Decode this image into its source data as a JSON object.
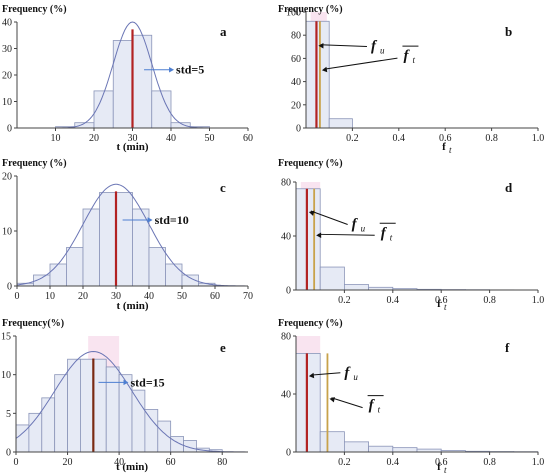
{
  "chart_data": [
    {
      "panel": "a",
      "type": "bar",
      "side": "left",
      "ylabel": "Frequency (%)",
      "xlabel": "t (min)",
      "xlim": [
        0,
        60
      ],
      "xticks": [
        10,
        20,
        30,
        40,
        50,
        60
      ],
      "ylim": [
        0,
        40
      ],
      "yticks": [
        0,
        10,
        20,
        30,
        40
      ],
      "bins": [
        {
          "x0": 10,
          "x1": 15,
          "value": 0.5
        },
        {
          "x0": 15,
          "x1": 20,
          "value": 2
        },
        {
          "x0": 20,
          "x1": 25,
          "value": 14
        },
        {
          "x0": 25,
          "x1": 30,
          "value": 33
        },
        {
          "x0": 30,
          "x1": 35,
          "value": 35
        },
        {
          "x0": 35,
          "x1": 40,
          "value": 14
        },
        {
          "x0": 40,
          "x1": 45,
          "value": 2
        },
        {
          "x0": 45,
          "x1": 50,
          "value": 0.5
        }
      ],
      "normal_curve": {
        "mean": 30,
        "std": 5,
        "peak": 40
      },
      "mean_line": {
        "x": 30,
        "color": "#b22222"
      },
      "annotation": "std=5",
      "annotation_anchor": {
        "x": 33,
        "y": 22
      }
    },
    {
      "panel": "b",
      "type": "bar",
      "side": "right",
      "ylabel": "Frequency (%)",
      "xlabel": "f",
      "xlabel_sub": "t",
      "xlim": [
        0,
        1
      ],
      "xticks": [
        0.2,
        0.4,
        0.6,
        0.8,
        1.0
      ],
      "xtick_labels": [
        "0.2",
        "0.4",
        "0.6",
        "0.8",
        "1.0"
      ],
      "ylim": [
        0,
        100
      ],
      "yticks": [
        0,
        20,
        40,
        60,
        80,
        100
      ],
      "bins": [
        {
          "x0": 0,
          "x1": 0.1,
          "value": 92
        },
        {
          "x0": 0.1,
          "x1": 0.2,
          "value": 8
        }
      ],
      "lines": [
        {
          "x": 0.045,
          "color": "#b22222"
        },
        {
          "x": 0.06,
          "color": "#c8a24a"
        }
      ],
      "band": {
        "x0": 0.02,
        "x1": 0.09,
        "color": "#f6d8ea"
      },
      "fu_label": "f",
      "fu_sub": "u",
      "ft_label": "f",
      "ft_sub": "t",
      "fu_pos": {
        "x": 0.28,
        "y": 72
      },
      "ft_pos": {
        "x": 0.42,
        "y": 62
      }
    },
    {
      "panel": "c",
      "type": "bar",
      "side": "left",
      "ylabel": "Frequency (%)",
      "xlabel": "t (min)",
      "xlim": [
        0,
        70
      ],
      "xticks": [
        0,
        10,
        20,
        30,
        40,
        50,
        60,
        70
      ],
      "ylim": [
        0,
        20
      ],
      "yticks": [
        0,
        10,
        20
      ],
      "bins": [
        {
          "x0": 0,
          "x1": 5,
          "value": 0.5
        },
        {
          "x0": 5,
          "x1": 10,
          "value": 2
        },
        {
          "x0": 10,
          "x1": 15,
          "value": 4
        },
        {
          "x0": 15,
          "x1": 20,
          "value": 7
        },
        {
          "x0": 20,
          "x1": 25,
          "value": 14
        },
        {
          "x0": 25,
          "x1": 30,
          "value": 17
        },
        {
          "x0": 30,
          "x1": 35,
          "value": 17
        },
        {
          "x0": 35,
          "x1": 40,
          "value": 14
        },
        {
          "x0": 40,
          "x1": 45,
          "value": 7
        },
        {
          "x0": 45,
          "x1": 50,
          "value": 4
        },
        {
          "x0": 50,
          "x1": 55,
          "value": 2
        },
        {
          "x0": 55,
          "x1": 60,
          "value": 0.5
        }
      ],
      "normal_curve": {
        "mean": 30,
        "std": 10,
        "peak": 18.5
      },
      "mean_line": {
        "x": 30,
        "color": "#b22222"
      },
      "annotation": "std=10",
      "annotation_anchor": {
        "x": 32,
        "y": 12
      }
    },
    {
      "panel": "d",
      "type": "bar",
      "side": "right",
      "ylabel": "Frequency (%)",
      "xlabel": "f",
      "xlabel_sub": "t",
      "xlim": [
        0,
        1
      ],
      "xticks": [
        0.2,
        0.4,
        0.6,
        0.8,
        1.0
      ],
      "xtick_labels": [
        "0.2",
        "0.4",
        "0.6",
        "0.8",
        "1.0"
      ],
      "ylim": [
        0,
        80
      ],
      "yticks": [
        0,
        40,
        80
      ],
      "bins": [
        {
          "x0": 0,
          "x1": 0.1,
          "value": 75
        },
        {
          "x0": 0.1,
          "x1": 0.2,
          "value": 17
        },
        {
          "x0": 0.2,
          "x1": 0.3,
          "value": 4
        },
        {
          "x0": 0.3,
          "x1": 0.4,
          "value": 2
        },
        {
          "x0": 0.4,
          "x1": 0.5,
          "value": 1
        },
        {
          "x0": 0.5,
          "x1": 0.6,
          "value": 0.5
        },
        {
          "x0": 0.6,
          "x1": 0.7,
          "value": 0.3
        },
        {
          "x0": 0.7,
          "x1": 0.8,
          "value": 0.2
        },
        {
          "x0": 0.8,
          "x1": 0.9,
          "value": 0.1
        }
      ],
      "lines": [
        {
          "x": 0.045,
          "color": "#b22222"
        },
        {
          "x": 0.075,
          "color": "#c8a24a"
        }
      ],
      "band": {
        "x0": 0.02,
        "x1": 0.1,
        "color": "#f6d8ea"
      },
      "fu_label": "f",
      "fu_sub": "u",
      "ft_label": "f",
      "ft_sub": "t",
      "fu_pos": {
        "x": 0.23,
        "y": 50
      },
      "ft_pos": {
        "x": 0.35,
        "y": 42
      }
    },
    {
      "panel": "e",
      "type": "bar",
      "side": "left",
      "ylabel": "Frequency(%)",
      "xlabel": "t (min)",
      "xlim": [
        0,
        90
      ],
      "xticks": [
        0,
        20,
        40,
        60,
        80
      ],
      "ylim": [
        0,
        15
      ],
      "yticks": [
        0,
        5,
        10,
        15
      ],
      "bins": [
        {
          "x0": 0,
          "x1": 5,
          "value": 3.5
        },
        {
          "x0": 5,
          "x1": 10,
          "value": 5
        },
        {
          "x0": 10,
          "x1": 15,
          "value": 7
        },
        {
          "x0": 15,
          "x1": 20,
          "value": 10
        },
        {
          "x0": 20,
          "x1": 25,
          "value": 12
        },
        {
          "x0": 25,
          "x1": 30,
          "value": 12
        },
        {
          "x0": 30,
          "x1": 35,
          "value": 12
        },
        {
          "x0": 35,
          "x1": 40,
          "value": 11
        },
        {
          "x0": 40,
          "x1": 45,
          "value": 10
        },
        {
          "x0": 45,
          "x1": 50,
          "value": 8
        },
        {
          "x0": 50,
          "x1": 55,
          "value": 5.5
        },
        {
          "x0": 55,
          "x1": 60,
          "value": 4
        },
        {
          "x0": 60,
          "x1": 65,
          "value": 2
        },
        {
          "x0": 65,
          "x1": 70,
          "value": 1.5
        },
        {
          "x0": 70,
          "x1": 75,
          "value": 0.5
        },
        {
          "x0": 75,
          "x1": 80,
          "value": 0.3
        }
      ],
      "normal_curve": {
        "mean": 30,
        "std": 15,
        "peak": 13
      },
      "mean_line": {
        "x": 30,
        "color": "#7a2a12"
      },
      "band": {
        "x0": 28,
        "x1": 40,
        "color": "#f6d8ea"
      },
      "annotation": "std=15",
      "annotation_anchor": {
        "x": 32,
        "y": 9
      }
    },
    {
      "panel": "f",
      "type": "bar",
      "side": "right",
      "ylabel": "Frequency (%)",
      "xlabel": "f",
      "xlabel_sub": "t",
      "xlim": [
        0,
        1
      ],
      "xticks": [
        0.2,
        0.4,
        0.6,
        0.8,
        1.0
      ],
      "xtick_labels": [
        "0.2",
        "0.4",
        "0.6",
        "0.8",
        "1.0"
      ],
      "ylim": [
        0,
        80
      ],
      "yticks": [
        0,
        40,
        80
      ],
      "bins": [
        {
          "x0": 0,
          "x1": 0.1,
          "value": 68
        },
        {
          "x0": 0.1,
          "x1": 0.2,
          "value": 14
        },
        {
          "x0": 0.2,
          "x1": 0.3,
          "value": 7
        },
        {
          "x0": 0.3,
          "x1": 0.4,
          "value": 4
        },
        {
          "x0": 0.4,
          "x1": 0.5,
          "value": 3
        },
        {
          "x0": 0.5,
          "x1": 0.6,
          "value": 2
        },
        {
          "x0": 0.6,
          "x1": 0.7,
          "value": 1
        },
        {
          "x0": 0.7,
          "x1": 0.8,
          "value": 0.5
        },
        {
          "x0": 0.8,
          "x1": 0.9,
          "value": 0.3
        },
        {
          "x0": 0.9,
          "x1": 1.0,
          "value": 0.2
        }
      ],
      "lines": [
        {
          "x": 0.045,
          "color": "#b22222"
        },
        {
          "x": 0.13,
          "color": "#c8a24a"
        }
      ],
      "band": {
        "x0": 0.0,
        "x1": 0.1,
        "color": "#f6d8ea"
      },
      "fu_label": "f",
      "fu_sub": "u",
      "ft_label": "f",
      "ft_sub": "t",
      "fu_pos": {
        "x": 0.2,
        "y": 56
      },
      "ft_pos": {
        "x": 0.3,
        "y": 32
      }
    }
  ]
}
